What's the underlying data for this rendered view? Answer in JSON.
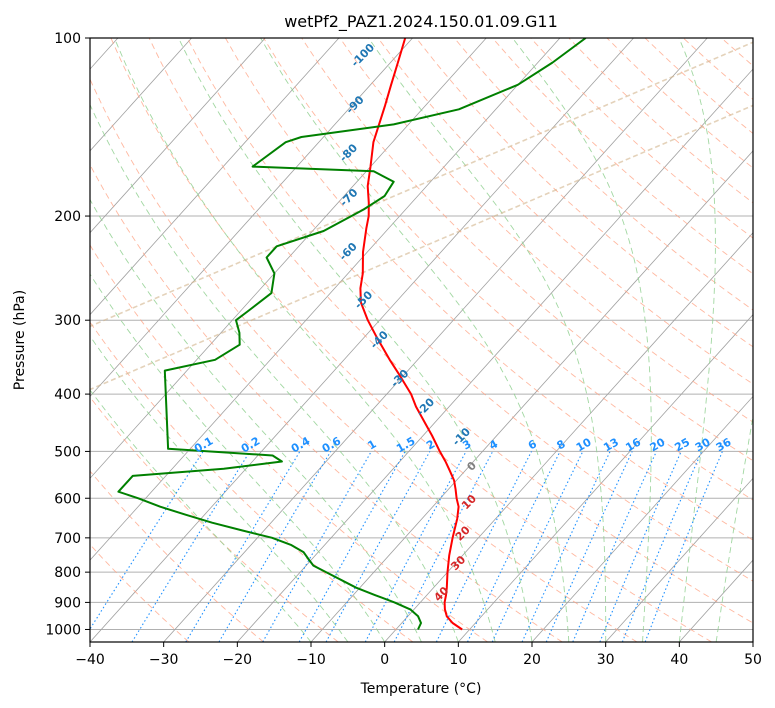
{
  "chart_data": {
    "type": "line",
    "subtype": "skew-t log-p",
    "title": "wetPf2_PAZ1.2024.150.01.09.G11",
    "xlabel": "Temperature (°C)",
    "ylabel": "Pressure (hPa)",
    "xlim": [
      -40,
      50
    ],
    "ylim": [
      1050,
      100
    ],
    "y_scale": "log",
    "grid": true,
    "x_ticks": [
      "−40",
      "−30",
      "−20",
      "−10",
      "0",
      "10",
      "20",
      "30",
      "40",
      "50"
    ],
    "x_tick_values": [
      -40,
      -30,
      -20,
      -10,
      0,
      10,
      20,
      30,
      40,
      50
    ],
    "y_ticks": [
      "1000",
      "900",
      "800",
      "700",
      "600",
      "500",
      "400",
      "300",
      "200",
      "100"
    ],
    "y_tick_values": [
      1000,
      900,
      800,
      700,
      600,
      500,
      400,
      300,
      200,
      100
    ],
    "colors": {
      "temperature": "#ff0000",
      "dewpoint": "#008000",
      "isotherm": "#a0a0a0",
      "dry_adiabat": "#ffa080",
      "moist_adiabat": "#90d090",
      "mixing_ratio": "#1e90ff",
      "hour_line": "#d2b48c",
      "moist_label": "#1f77b4",
      "red_label": "#d62728"
    },
    "series": [
      {
        "name": "temperature",
        "points": [
          {
            "p": 1000,
            "t": 9.0
          },
          {
            "p": 975,
            "t": 6.9
          },
          {
            "p": 950,
            "t": 5.3
          },
          {
            "p": 925,
            "t": 4.2
          },
          {
            "p": 900,
            "t": 3.3
          },
          {
            "p": 875,
            "t": 2.6
          },
          {
            "p": 850,
            "t": 1.8
          },
          {
            "p": 800,
            "t": 0.0
          },
          {
            "p": 750,
            "t": -1.8
          },
          {
            "p": 700,
            "t": -3.5
          },
          {
            "p": 650,
            "t": -5.2
          },
          {
            "p": 620,
            "t": -6.5
          },
          {
            "p": 600,
            "t": -7.8
          },
          {
            "p": 580,
            "t": -9.0
          },
          {
            "p": 560,
            "t": -10.3
          },
          {
            "p": 540,
            "t": -12.0
          },
          {
            "p": 520,
            "t": -13.8
          },
          {
            "p": 500,
            "t": -15.8
          },
          {
            "p": 470,
            "t": -18.8
          },
          {
            "p": 450,
            "t": -21.0
          },
          {
            "p": 420,
            "t": -24.5
          },
          {
            "p": 400,
            "t": -26.7
          },
          {
            "p": 370,
            "t": -30.8
          },
          {
            "p": 350,
            "t": -33.8
          },
          {
            "p": 320,
            "t": -38.4
          },
          {
            "p": 300,
            "t": -41.6
          },
          {
            "p": 280,
            "t": -44.7
          },
          {
            "p": 265,
            "t": -46.5
          },
          {
            "p": 250,
            "t": -48.0
          },
          {
            "p": 230,
            "t": -50.6
          },
          {
            "p": 210,
            "t": -53.0
          },
          {
            "p": 200,
            "t": -54.2
          },
          {
            "p": 190,
            "t": -55.8
          },
          {
            "p": 178,
            "t": -58.0
          },
          {
            "p": 165,
            "t": -60.0
          },
          {
            "p": 150,
            "t": -62.6
          },
          {
            "p": 130,
            "t": -65.5
          },
          {
            "p": 120,
            "t": -67.2
          },
          {
            "p": 110,
            "t": -69.0
          },
          {
            "p": 100,
            "t": -71.0
          }
        ]
      },
      {
        "name": "dewpoint",
        "points": [
          {
            "p": 1000,
            "t": 3.0
          },
          {
            "p": 975,
            "t": 2.6
          },
          {
            "p": 950,
            "t": 1.4
          },
          {
            "p": 925,
            "t": -0.5
          },
          {
            "p": 900,
            "t": -3.5
          },
          {
            "p": 875,
            "t": -7.0
          },
          {
            "p": 850,
            "t": -10.5
          },
          {
            "p": 800,
            "t": -16.5
          },
          {
            "p": 780,
            "t": -19.0
          },
          {
            "p": 760,
            "t": -20.5
          },
          {
            "p": 740,
            "t": -22.0
          },
          {
            "p": 720,
            "t": -24.5
          },
          {
            "p": 700,
            "t": -28.0
          },
          {
            "p": 680,
            "t": -33.0
          },
          {
            "p": 660,
            "t": -38.0
          },
          {
            "p": 640,
            "t": -42.5
          },
          {
            "p": 620,
            "t": -47.0
          },
          {
            "p": 600,
            "t": -51.0
          },
          {
            "p": 585,
            "t": -54.5
          },
          {
            "p": 550,
            "t": -54.5
          },
          {
            "p": 535,
            "t": -43.0
          },
          {
            "p": 520,
            "t": -36.0
          },
          {
            "p": 508,
            "t": -38.0
          },
          {
            "p": 495,
            "t": -53.0
          },
          {
            "p": 365,
            "t": -63.0
          },
          {
            "p": 350,
            "t": -57.5
          },
          {
            "p": 330,
            "t": -56.0
          },
          {
            "p": 315,
            "t": -57.5
          },
          {
            "p": 300,
            "t": -59.5
          },
          {
            "p": 290,
            "t": -59.0
          },
          {
            "p": 270,
            "t": -58.0
          },
          {
            "p": 250,
            "t": -60.0
          },
          {
            "p": 235,
            "t": -63.0
          },
          {
            "p": 225,
            "t": -63.0
          },
          {
            "p": 212,
            "t": -58.5
          },
          {
            "p": 195,
            "t": -55.7
          },
          {
            "p": 185,
            "t": -54.5
          },
          {
            "p": 175,
            "t": -55.0
          },
          {
            "p": 168,
            "t": -59.0
          },
          {
            "p": 165,
            "t": -76.0
          },
          {
            "p": 150,
            "t": -74.5
          },
          {
            "p": 147,
            "t": -73.0
          },
          {
            "p": 140,
            "t": -62.0
          },
          {
            "p": 132,
            "t": -55.0
          },
          {
            "p": 120,
            "t": -50.0
          },
          {
            "p": 110,
            "t": -48.0
          },
          {
            "p": 100,
            "t": -46.5
          }
        ]
      }
    ],
    "moist_adiabat_labels": [
      "-100",
      "-90",
      "-80",
      "-70",
      "-60",
      "-50",
      "-40",
      "-30",
      "-20",
      "-10"
    ],
    "mixing_ratio_labels": [
      "0.1",
      "0.2",
      "0.4",
      "0.6",
      "1",
      "1.5",
      "2",
      "3",
      "4",
      "6",
      "8",
      "10",
      "13",
      "16",
      "20",
      "25",
      "30",
      "36"
    ],
    "dry_adiabat_labels": [
      "0",
      "10",
      "20",
      "30",
      "40"
    ]
  }
}
